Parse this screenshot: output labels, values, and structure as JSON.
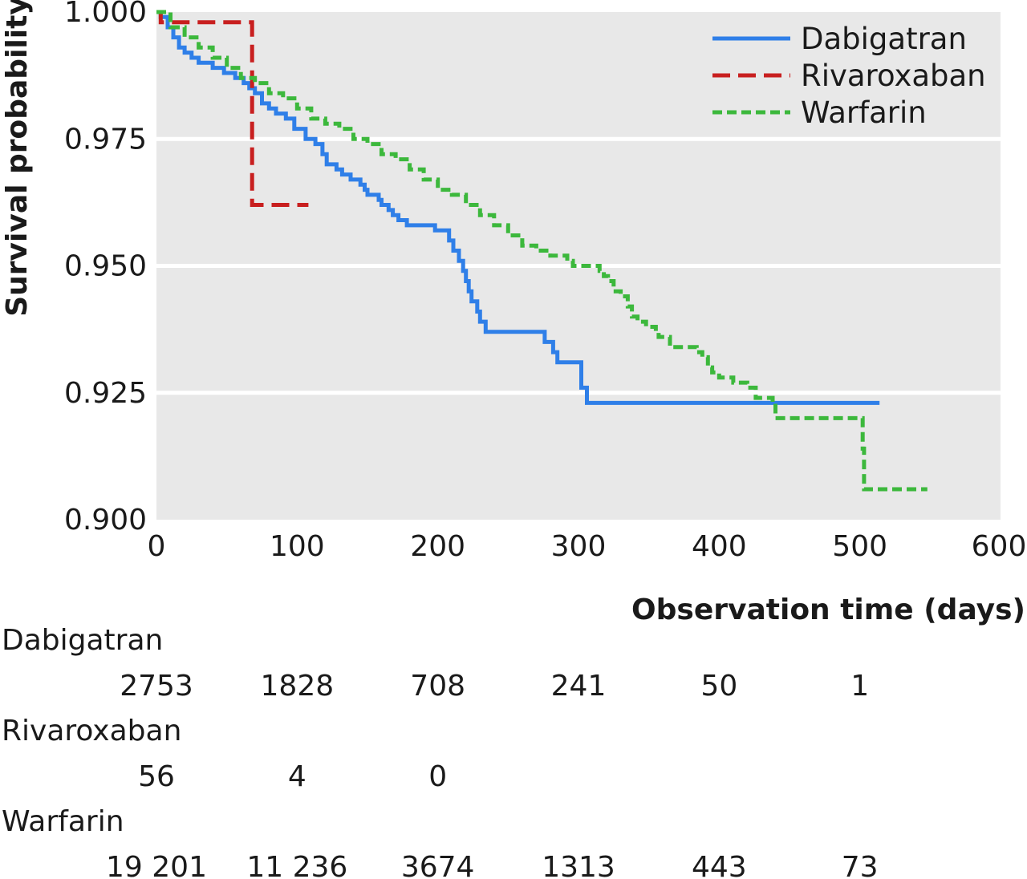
{
  "chart_data": {
    "type": "line",
    "chart_style": "kaplan-meier step curves",
    "xlabel": "Observation time (days)",
    "ylabel": "Survival probability",
    "xlim": [
      0,
      600
    ],
    "ylim": [
      0.9,
      1.0
    ],
    "x_ticks": [
      "0",
      "100",
      "200",
      "300",
      "400",
      "500",
      "600"
    ],
    "y_ticks": [
      "0.900",
      "0.925",
      "0.950",
      "0.975",
      "1.000"
    ],
    "grid": "horizontal, white lines on grey panel",
    "legend_position": "top-right",
    "series": [
      {
        "name": "Dabigatran",
        "color": "#2f7fe8",
        "dash": "solid",
        "points": [
          [
            0,
            1.0
          ],
          [
            3,
            0.999
          ],
          [
            8,
            0.997
          ],
          [
            12,
            0.995
          ],
          [
            16,
            0.993
          ],
          [
            20,
            0.992
          ],
          [
            25,
            0.991
          ],
          [
            30,
            0.99
          ],
          [
            40,
            0.989
          ],
          [
            48,
            0.988
          ],
          [
            56,
            0.987
          ],
          [
            62,
            0.986
          ],
          [
            66,
            0.985
          ],
          [
            70,
            0.984
          ],
          [
            75,
            0.982
          ],
          [
            80,
            0.981
          ],
          [
            85,
            0.98
          ],
          [
            92,
            0.979
          ],
          [
            98,
            0.977
          ],
          [
            105,
            0.977
          ],
          [
            106,
            0.975
          ],
          [
            113,
            0.974
          ],
          [
            118,
            0.972
          ],
          [
            121,
            0.97
          ],
          [
            128,
            0.969
          ],
          [
            132,
            0.968
          ],
          [
            138,
            0.967
          ],
          [
            145,
            0.966
          ],
          [
            148,
            0.965
          ],
          [
            150,
            0.964
          ],
          [
            158,
            0.963
          ],
          [
            160,
            0.962
          ],
          [
            165,
            0.961
          ],
          [
            168,
            0.96
          ],
          [
            172,
            0.959
          ],
          [
            178,
            0.958
          ],
          [
            195,
            0.958
          ],
          [
            198,
            0.957
          ],
          [
            205,
            0.957
          ],
          [
            208,
            0.955
          ],
          [
            211,
            0.953
          ],
          [
            215,
            0.951
          ],
          [
            218,
            0.949
          ],
          [
            220,
            0.947
          ],
          [
            222,
            0.945
          ],
          [
            224,
            0.943
          ],
          [
            228,
            0.941
          ],
          [
            230,
            0.939
          ],
          [
            234,
            0.937
          ],
          [
            275,
            0.937
          ],
          [
            276,
            0.935
          ],
          [
            282,
            0.933
          ],
          [
            285,
            0.931
          ],
          [
            300,
            0.931
          ],
          [
            302,
            0.926
          ],
          [
            306,
            0.923
          ],
          [
            514,
            0.923
          ]
        ]
      },
      {
        "name": "Rivaroxaban",
        "color": "#c81f1f",
        "dash": "dashed",
        "points": [
          [
            0,
            1.0
          ],
          [
            3,
            0.998
          ],
          [
            68,
            0.998
          ],
          [
            68,
            0.962
          ],
          [
            108,
            0.962
          ]
        ]
      },
      {
        "name": "Warfarin",
        "color": "#3cb83c",
        "dash": "dashed",
        "points": [
          [
            0,
            1.0
          ],
          [
            10,
            0.997
          ],
          [
            20,
            0.995
          ],
          [
            30,
            0.993
          ],
          [
            40,
            0.991
          ],
          [
            50,
            0.989
          ],
          [
            60,
            0.987
          ],
          [
            70,
            0.986
          ],
          [
            80,
            0.984
          ],
          [
            90,
            0.983
          ],
          [
            100,
            0.981
          ],
          [
            110,
            0.979
          ],
          [
            120,
            0.978
          ],
          [
            130,
            0.977
          ],
          [
            140,
            0.975
          ],
          [
            150,
            0.974
          ],
          [
            160,
            0.972
          ],
          [
            170,
            0.971
          ],
          [
            180,
            0.969
          ],
          [
            190,
            0.967
          ],
          [
            200,
            0.965
          ],
          [
            210,
            0.964
          ],
          [
            220,
            0.962
          ],
          [
            230,
            0.96
          ],
          [
            240,
            0.958
          ],
          [
            250,
            0.956
          ],
          [
            260,
            0.954
          ],
          [
            270,
            0.953
          ],
          [
            280,
            0.952
          ],
          [
            288,
            0.952
          ],
          [
            292,
            0.951
          ],
          [
            296,
            0.95
          ],
          [
            310,
            0.95
          ],
          [
            315,
            0.949
          ],
          [
            318,
            0.948
          ],
          [
            321,
            0.947
          ],
          [
            325,
            0.945
          ],
          [
            330,
            0.944
          ],
          [
            335,
            0.942
          ],
          [
            338,
            0.94
          ],
          [
            342,
            0.939
          ],
          [
            348,
            0.938
          ],
          [
            355,
            0.937
          ],
          [
            357,
            0.936
          ],
          [
            365,
            0.934
          ],
          [
            380,
            0.934
          ],
          [
            384,
            0.933
          ],
          [
            388,
            0.932
          ],
          [
            392,
            0.93
          ],
          [
            395,
            0.929
          ],
          [
            400,
            0.928
          ],
          [
            410,
            0.927
          ],
          [
            420,
            0.926
          ],
          [
            426,
            0.924
          ],
          [
            438,
            0.923
          ],
          [
            440,
            0.92
          ],
          [
            500,
            0.92
          ],
          [
            502,
            0.914
          ],
          [
            503,
            0.906
          ],
          [
            548,
            0.906
          ]
        ]
      }
    ],
    "risk_table": {
      "times": [
        0,
        100,
        200,
        300,
        400,
        500
      ],
      "rows": [
        {
          "name": "Dabigatran",
          "values": [
            "2753",
            "1828",
            "708",
            "241",
            "50",
            "1"
          ]
        },
        {
          "name": "Rivaroxaban",
          "values": [
            "56",
            "4",
            "0",
            "",
            "",
            ""
          ]
        },
        {
          "name": "Warfarin",
          "values": [
            "19 201",
            "11 236",
            "3674",
            "1313",
            "443",
            "73"
          ]
        }
      ]
    }
  },
  "colors": {
    "panel_background": "#e8e8e8",
    "gridline": "#ffffff",
    "text": "#1a1a1a"
  }
}
